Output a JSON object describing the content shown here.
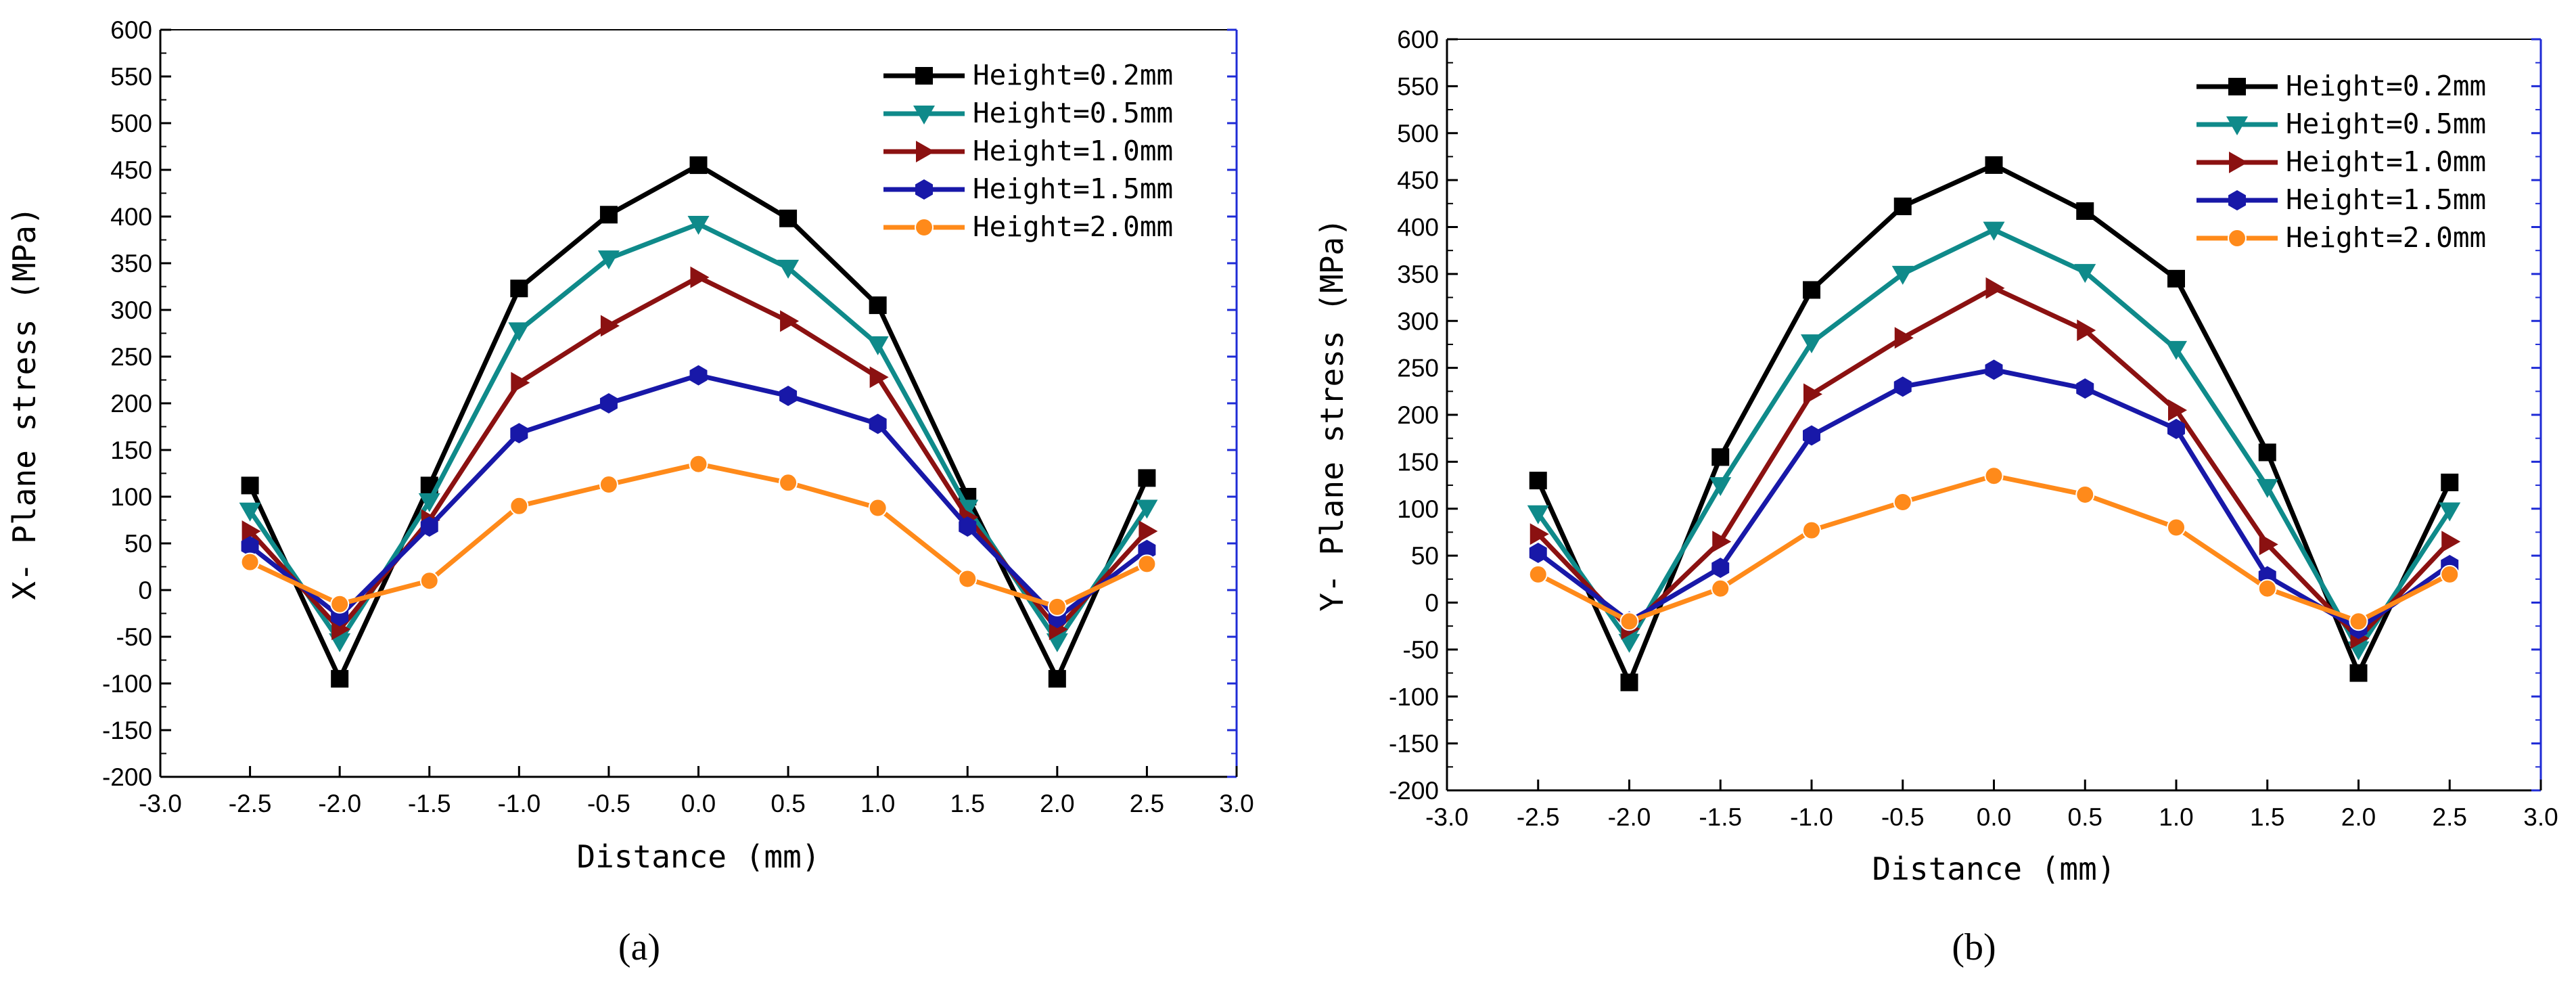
{
  "figure": {
    "colors": {
      "axis": "#000000",
      "right_axis": "#1f2bd6"
    },
    "panels": [
      {
        "caption": "(a)"
      },
      {
        "caption": "(b)"
      }
    ]
  },
  "chart_data": [
    {
      "type": "line",
      "caption": "(a)",
      "xlabel": "Distance (mm)",
      "ylabel": "X- Plane stress (MPa)",
      "xlim": [
        -3.0,
        3.0
      ],
      "ylim": [
        -200,
        600
      ],
      "xticks": [
        -3.0,
        -2.5,
        -2.0,
        -1.5,
        -1.0,
        -0.5,
        0.0,
        0.5,
        1.0,
        1.5,
        2.0,
        2.5,
        3.0
      ],
      "xtick_labels": [
        "-3.0",
        "-2.5",
        "-2.0",
        "-1.5",
        "-1.0",
        "-0.5",
        "0.0",
        "0.5",
        "1.0",
        "1.5",
        "2.0",
        "2.5",
        "3.0"
      ],
      "yticks": [
        -200,
        -150,
        -100,
        -50,
        0,
        50,
        100,
        150,
        200,
        250,
        300,
        350,
        400,
        450,
        500,
        550,
        600
      ],
      "ytick_labels": [
        "-200",
        "-150",
        "-100",
        "-50",
        "0",
        "50",
        "100",
        "150",
        "200",
        "250",
        "300",
        "350",
        "400",
        "450",
        "500",
        "550",
        "600"
      ],
      "legend_position": "top-right",
      "x": [
        -2.5,
        -2.0,
        -1.5,
        -1.0,
        -0.5,
        0.0,
        0.5,
        1.0,
        1.5,
        2.0,
        2.5
      ],
      "series": [
        {
          "name": "Height=0.2mm",
          "color": "#000000",
          "marker": "square",
          "values": [
            112,
            -95,
            112,
            323,
            402,
            455,
            398,
            305,
            100,
            -95,
            120
          ]
        },
        {
          "name": "Height=0.5mm",
          "color": "#0f8a8a",
          "marker": "triangle-down",
          "values": [
            85,
            -55,
            95,
            278,
            355,
            392,
            345,
            263,
            88,
            -55,
            88
          ]
        },
        {
          "name": "Height=1.0mm",
          "color": "#8b1111",
          "marker": "triangle-right",
          "values": [
            63,
            -42,
            75,
            222,
            283,
            335,
            288,
            228,
            78,
            -42,
            63
          ]
        },
        {
          "name": "Height=1.5mm",
          "color": "#1818a8",
          "marker": "hexagon",
          "values": [
            47,
            -28,
            68,
            168,
            200,
            230,
            208,
            178,
            68,
            -30,
            43
          ]
        },
        {
          "name": "Height=2.0mm",
          "color": "#ff8a1a",
          "marker": "circle",
          "values": [
            30,
            -15,
            10,
            90,
            113,
            135,
            115,
            88,
            12,
            -18,
            28
          ]
        }
      ]
    },
    {
      "type": "line",
      "caption": "(b)",
      "xlabel": "Distance (mm)",
      "ylabel": "Y- Plane stress (MPa)",
      "xlim": [
        -3.0,
        3.0
      ],
      "ylim": [
        -200,
        600
      ],
      "xticks": [
        -3.0,
        -2.5,
        -2.0,
        -1.5,
        -1.0,
        -0.5,
        0.0,
        0.5,
        1.0,
        1.5,
        2.0,
        2.5,
        3.0
      ],
      "xtick_labels": [
        "-3.0",
        "-2.5",
        "-2.0",
        "-1.5",
        "-1.0",
        "-0.5",
        "0.0",
        "0.5",
        "1.0",
        "1.5",
        "2.0",
        "2.5",
        "3.0"
      ],
      "yticks": [
        -200,
        -150,
        -100,
        -50,
        0,
        50,
        100,
        150,
        200,
        250,
        300,
        350,
        400,
        450,
        500,
        550,
        600
      ],
      "ytick_labels": [
        "-200",
        "-150",
        "-100",
        "-50",
        "0",
        "50",
        "100",
        "150",
        "200",
        "250",
        "300",
        "350",
        "400",
        "450",
        "500",
        "550",
        "600"
      ],
      "legend_position": "top-right",
      "x": [
        -2.5,
        -2.0,
        -1.5,
        -1.0,
        -0.5,
        0.0,
        0.5,
        1.0,
        1.5,
        2.0,
        2.5
      ],
      "series": [
        {
          "name": "Height=0.2mm",
          "color": "#000000",
          "marker": "square",
          "values": [
            130,
            -85,
            155,
            333,
            422,
            466,
            417,
            345,
            160,
            -75,
            128
          ]
        },
        {
          "name": "Height=0.5mm",
          "color": "#0f8a8a",
          "marker": "triangle-down",
          "values": [
            95,
            -42,
            125,
            277,
            350,
            397,
            352,
            270,
            123,
            -50,
            98
          ]
        },
        {
          "name": "Height=1.0mm",
          "color": "#8b1111",
          "marker": "triangle-right",
          "values": [
            73,
            -28,
            65,
            222,
            282,
            335,
            290,
            205,
            62,
            -38,
            65
          ]
        },
        {
          "name": "Height=1.5mm",
          "color": "#1818a8",
          "marker": "hexagon",
          "values": [
            53,
            -20,
            37,
            178,
            230,
            248,
            228,
            185,
            28,
            -28,
            40
          ]
        },
        {
          "name": "Height=2.0mm",
          "color": "#ff8a1a",
          "marker": "circle",
          "values": [
            30,
            -20,
            15,
            77,
            107,
            135,
            115,
            80,
            15,
            -20,
            30
          ]
        }
      ]
    }
  ]
}
